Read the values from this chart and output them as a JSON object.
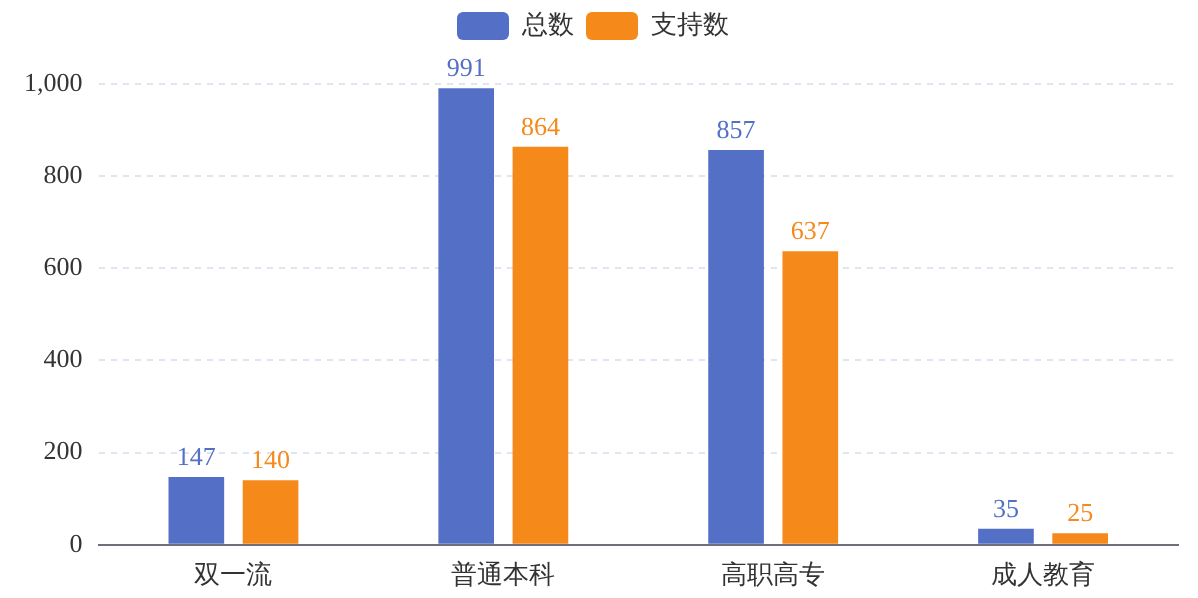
{
  "chart_data": {
    "type": "bar",
    "categories": [
      "双一流",
      "普通本科",
      "高职高专",
      "成人教育"
    ],
    "series": [
      {
        "name": "总数",
        "color": "#5470c6",
        "values": [
          147,
          991,
          857,
          35
        ]
      },
      {
        "name": "支持数",
        "color": "#f5891a",
        "values": [
          140,
          864,
          637,
          25
        ]
      }
    ],
    "ylim": [
      0,
      1000
    ],
    "yticks": [
      0,
      200,
      400,
      600,
      800,
      {
        "value": 1000,
        "label": "1,000"
      }
    ],
    "grid": "y",
    "legend": "top",
    "data_labels": true
  }
}
